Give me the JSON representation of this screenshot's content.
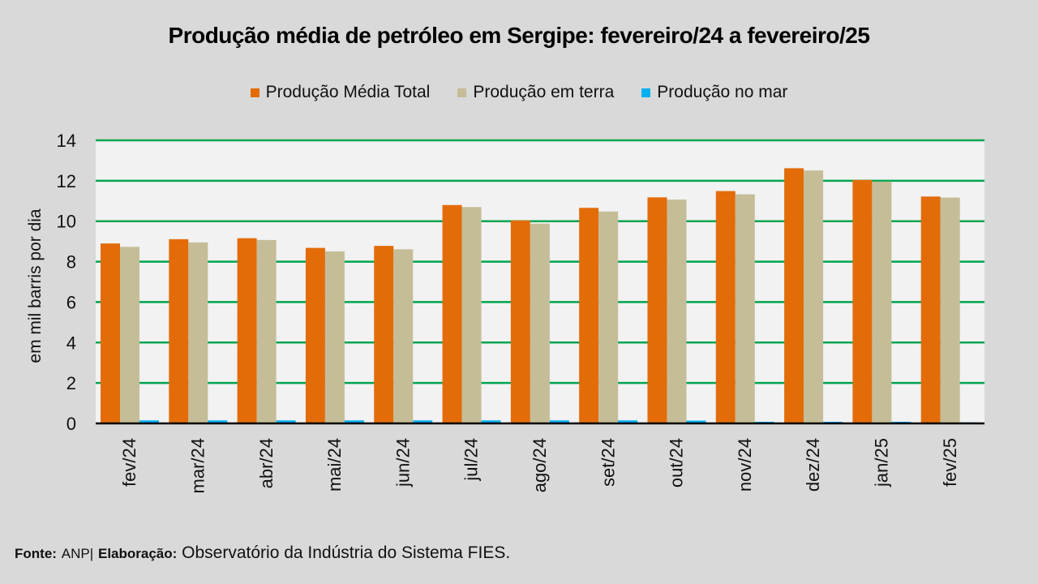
{
  "chart_data": {
    "type": "bar",
    "title": "Produção média de petróleo em Sergipe: fevereiro/24 a fevereiro/25",
    "xlabel": "",
    "ylabel": "em mil barris por dia",
    "ylim": [
      0,
      14
    ],
    "yticks": [
      0,
      2,
      4,
      6,
      8,
      10,
      12,
      14
    ],
    "grid": true,
    "legend_position": "top-center",
    "categories": [
      "fev/24",
      "mar/24",
      "abr/24",
      "mai/24",
      "jun/24",
      "jul/24",
      "ago/24",
      "set/24",
      "out/24",
      "nov/24",
      "dez/24",
      "jan/25",
      "fev/25"
    ],
    "series": [
      {
        "name": "Produção Média Total",
        "color": "#e36c09",
        "values": [
          8.9,
          9.11,
          9.16,
          8.68,
          8.78,
          10.8,
          10.04,
          10.66,
          11.18,
          11.49,
          12.62,
          12.04,
          11.22
        ]
      },
      {
        "name": "Produção em terra",
        "color": "#c4bd97",
        "values": [
          8.73,
          8.95,
          9.07,
          8.51,
          8.61,
          10.7,
          9.88,
          10.48,
          11.07,
          11.33,
          12.51,
          11.96,
          11.17
        ]
      },
      {
        "name": "Produção no mar",
        "color": "#00b0f0",
        "values": [
          0.15,
          0.15,
          0.15,
          0.15,
          0.15,
          0.15,
          0.15,
          0.15,
          0.14,
          0.08,
          0.08,
          0.08,
          0.05
        ]
      }
    ],
    "colors": {
      "grid": "#00a550",
      "plot_bg": "#f2f2f2",
      "page_bg": "#d9d9d9",
      "axis": "#000000"
    }
  },
  "footer": {
    "source_label": "Fonte:",
    "source_value": "ANP|",
    "elab_label": "Elaboração:",
    "elab_value": "Observatório da Indústria do Sistema FIES."
  }
}
